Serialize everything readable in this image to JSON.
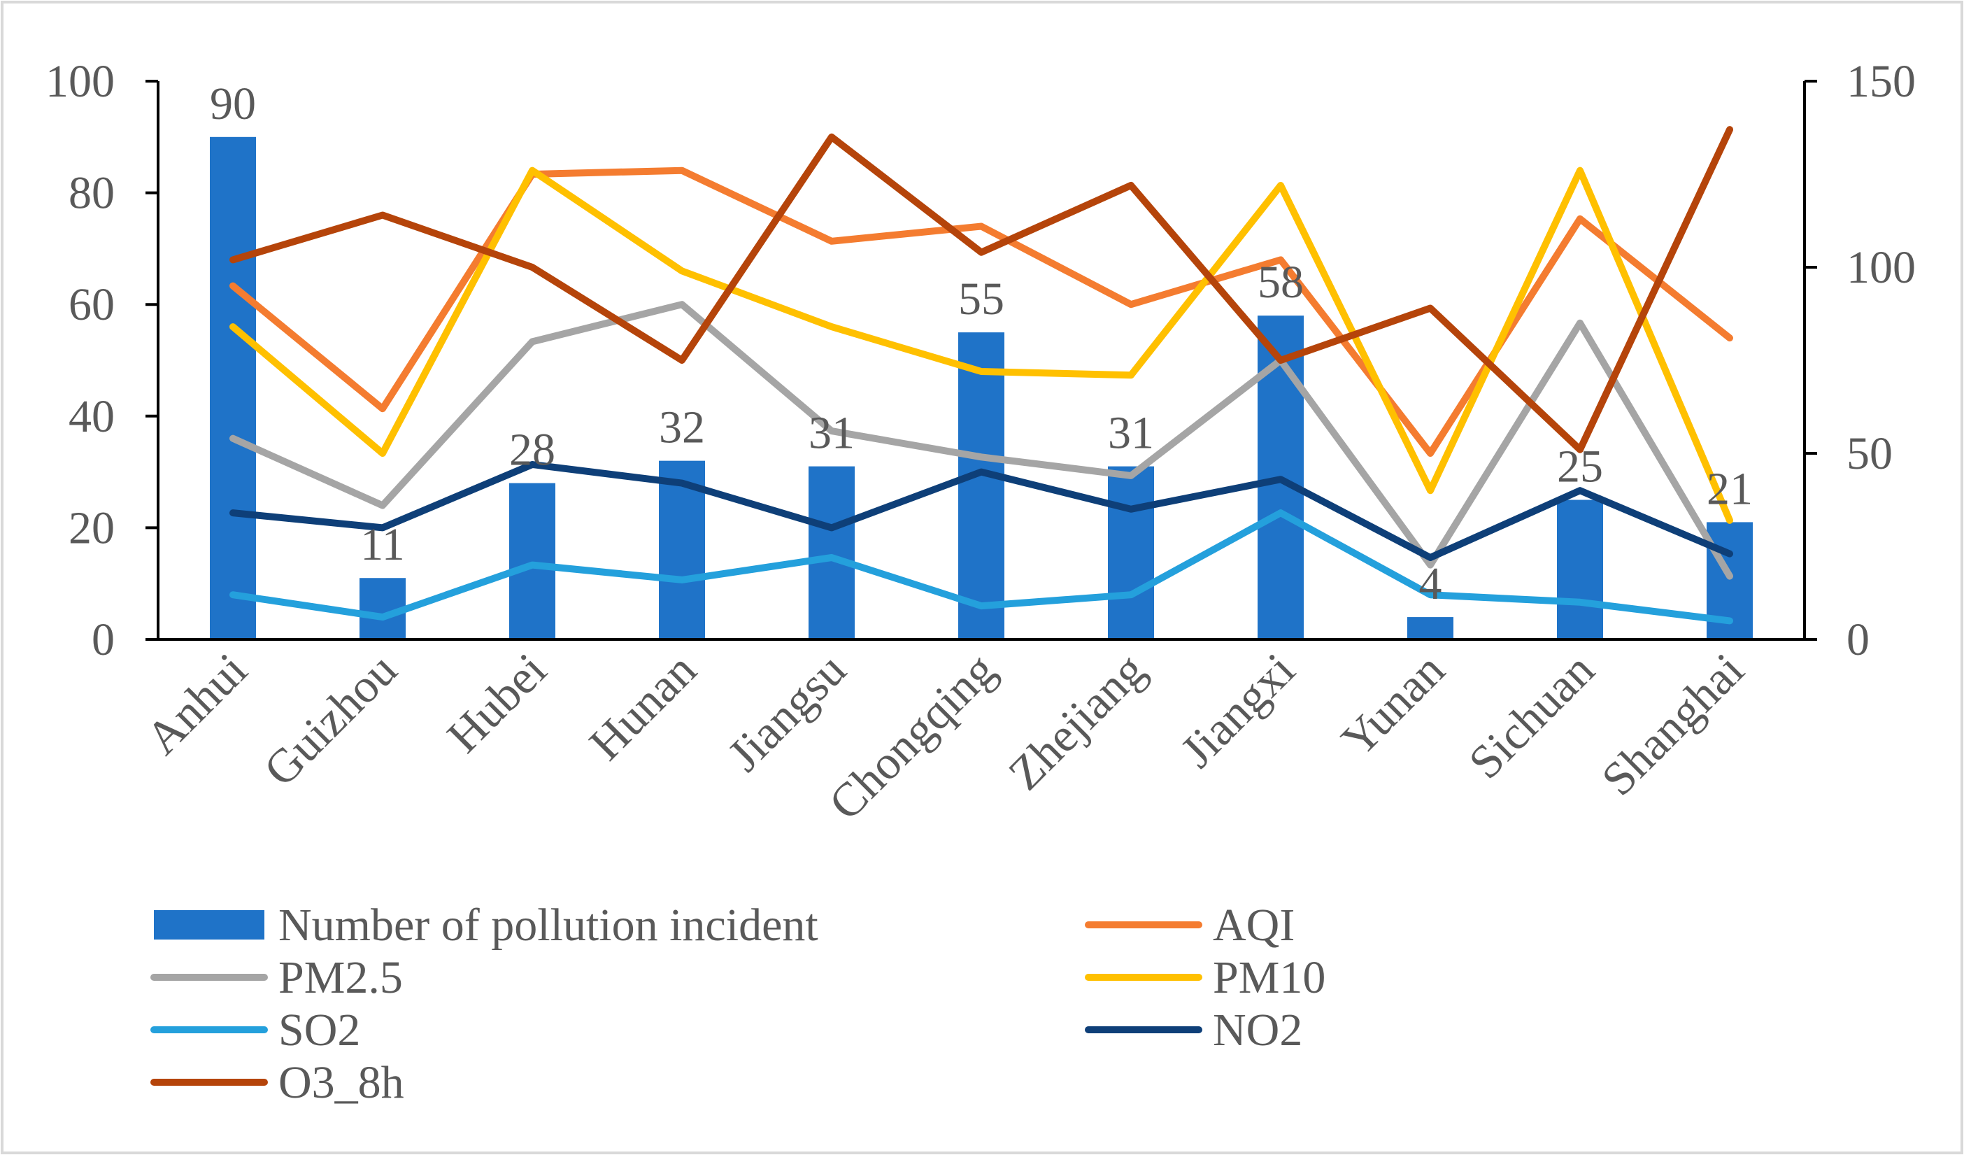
{
  "chart_data": {
    "type": "bar",
    "categories": [
      "Anhui",
      "Guizhou",
      "Hubei",
      "Hunan",
      "Jiangsu",
      "Chongqing",
      "Zhejiang",
      "Jiangxi",
      "Yunan",
      "Sichuan",
      "Shanghai"
    ],
    "y_left": {
      "min": 0,
      "max": 100,
      "ticks": [
        "0",
        "20",
        "40",
        "60",
        "80",
        "100"
      ]
    },
    "y_right": {
      "min": 0,
      "max": 150,
      "ticks": [
        "0",
        "50",
        "100",
        "150"
      ]
    },
    "series": [
      {
        "name": "Number of pollution incident",
        "type": "bar",
        "axis": "left",
        "color": "#1f73c8",
        "values": [
          90,
          11,
          28,
          32,
          31,
          55,
          31,
          58,
          4,
          25,
          21
        ],
        "labels": [
          "90",
          "11",
          "28",
          "32",
          "31",
          "55",
          "31",
          "58",
          "4",
          "25",
          "21"
        ]
      },
      {
        "name": "AQI",
        "type": "line",
        "axis": "right",
        "color": "#f47c30",
        "values": [
          95,
          62,
          125,
          126,
          107,
          111,
          90,
          102,
          50,
          113,
          81
        ]
      },
      {
        "name": "PM2.5",
        "type": "line",
        "axis": "right",
        "color": "#a5a5a5",
        "values": [
          54,
          36,
          80,
          90,
          56,
          49,
          44,
          75,
          20,
          85,
          17
        ]
      },
      {
        "name": "PM10",
        "type": "line",
        "axis": "right",
        "color": "#ffc000",
        "values": [
          84,
          50,
          126,
          99,
          84,
          72,
          71,
          122,
          40,
          126,
          32
        ]
      },
      {
        "name": "SO2",
        "type": "line",
        "axis": "right",
        "color": "#24a0dc",
        "values": [
          12,
          6,
          20,
          16,
          22,
          9,
          12,
          34,
          12,
          10,
          5
        ]
      },
      {
        "name": "NO2",
        "type": "line",
        "axis": "right",
        "color": "#0e3f78",
        "values": [
          34,
          30,
          47,
          42,
          30,
          45,
          35,
          43,
          22,
          40,
          23
        ]
      },
      {
        "name": "O3_8h",
        "type": "line",
        "axis": "right",
        "color": "#b5440a",
        "values": [
          102,
          114,
          100,
          75,
          135,
          104,
          122,
          75,
          89,
          51,
          137
        ]
      }
    ],
    "legend": {
      "placement": "bottom",
      "columns": 2
    }
  }
}
